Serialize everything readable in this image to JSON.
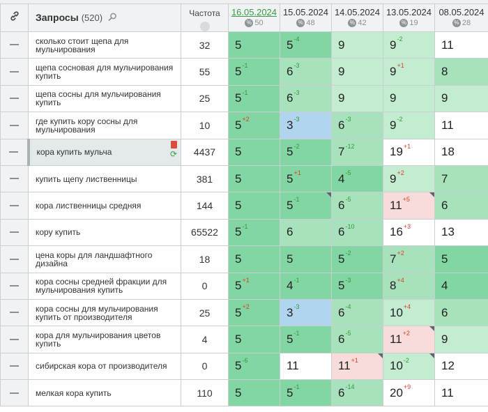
{
  "header": {
    "title": "Запросы",
    "count": "(520)",
    "freq": "Частота",
    "link_icon": "link-icon",
    "search_icon": "search-icon"
  },
  "dates": [
    {
      "label": "16.05.2024",
      "count": "50",
      "active": true
    },
    {
      "label": "15.05.2024",
      "count": "48",
      "active": false
    },
    {
      "label": "14.05.2024",
      "count": "42",
      "active": false
    },
    {
      "label": "13.05.2024",
      "count": "19",
      "active": false
    },
    {
      "label": "08.05.2024",
      "count": "28",
      "active": false
    }
  ],
  "rows": [
    {
      "query": "сколько стоит щепа для мульчирования",
      "freq": "32",
      "cells": [
        {
          "v": "5",
          "d": "",
          "c": "g1"
        },
        {
          "v": "5",
          "d": "-4",
          "c": "g1"
        },
        {
          "v": "9",
          "d": "",
          "c": "g3"
        },
        {
          "v": "9",
          "d": "-2",
          "c": "g3"
        },
        {
          "v": "11",
          "d": "",
          "c": "w"
        }
      ]
    },
    {
      "query": "щепа сосновая для мульчирования купить",
      "freq": "55",
      "cells": [
        {
          "v": "5",
          "d": "-1",
          "c": "g1"
        },
        {
          "v": "6",
          "d": "-3",
          "c": "g2"
        },
        {
          "v": "9",
          "d": "",
          "c": "g3"
        },
        {
          "v": "9",
          "d": "+1",
          "c": "g3"
        },
        {
          "v": "8",
          "d": "",
          "c": "g2"
        }
      ]
    },
    {
      "query": "щепа сосны для мульчирования купить",
      "freq": "25",
      "cells": [
        {
          "v": "5",
          "d": "-1",
          "c": "g1"
        },
        {
          "v": "6",
          "d": "-3",
          "c": "g2"
        },
        {
          "v": "9",
          "d": "",
          "c": "g3"
        },
        {
          "v": "9",
          "d": "",
          "c": "g3"
        },
        {
          "v": "9",
          "d": "",
          "c": "g3"
        }
      ]
    },
    {
      "query": "где купить кору сосны для мульчирования",
      "freq": "10",
      "cells": [
        {
          "v": "5",
          "d": "+2",
          "c": "g1"
        },
        {
          "v": "3",
          "d": "-3",
          "c": "b"
        },
        {
          "v": "6",
          "d": "-3",
          "c": "g2"
        },
        {
          "v": "9",
          "d": "-2",
          "c": "g3"
        },
        {
          "v": "11",
          "d": "",
          "c": "w"
        }
      ]
    },
    {
      "query": "кора купить мульча",
      "freq": "4437",
      "highlighted": true,
      "cells": [
        {
          "v": "5",
          "d": "",
          "c": "g1"
        },
        {
          "v": "5",
          "d": "-2",
          "c": "g1"
        },
        {
          "v": "7",
          "d": "-12",
          "c": "g2"
        },
        {
          "v": "19",
          "d": "+1",
          "c": "w"
        },
        {
          "v": "18",
          "d": "",
          "c": "w"
        }
      ]
    },
    {
      "query": "купить щепу лиственницы",
      "freq": "381",
      "cells": [
        {
          "v": "5",
          "d": "",
          "c": "g1"
        },
        {
          "v": "5",
          "d": "+1",
          "c": "g1"
        },
        {
          "v": "4",
          "d": "-5",
          "c": "g1"
        },
        {
          "v": "9",
          "d": "+2",
          "c": "g3"
        },
        {
          "v": "7",
          "d": "",
          "c": "g2"
        }
      ]
    },
    {
      "query": "кора лиственницы средняя",
      "freq": "144",
      "cells": [
        {
          "v": "5",
          "d": "",
          "c": "g1"
        },
        {
          "v": "5",
          "d": "-1",
          "c": "g1",
          "tri": true
        },
        {
          "v": "6",
          "d": "-5",
          "c": "g2"
        },
        {
          "v": "11",
          "d": "+5",
          "c": "p",
          "tri": true
        },
        {
          "v": "6",
          "d": "",
          "c": "g2"
        }
      ]
    },
    {
      "query": "кору купить",
      "freq": "65522",
      "cells": [
        {
          "v": "5",
          "d": "-1",
          "c": "g1"
        },
        {
          "v": "6",
          "d": "",
          "c": "g2"
        },
        {
          "v": "6",
          "d": "-10",
          "c": "g2"
        },
        {
          "v": "16",
          "d": "+3",
          "c": "w"
        },
        {
          "v": "13",
          "d": "",
          "c": "w"
        }
      ]
    },
    {
      "query": "цена коры для ландшафтного дизайна",
      "freq": "18",
      "cells": [
        {
          "v": "5",
          "d": "",
          "c": "g1"
        },
        {
          "v": "5",
          "d": "",
          "c": "g1"
        },
        {
          "v": "5",
          "d": "-2",
          "c": "g1"
        },
        {
          "v": "7",
          "d": "+2",
          "c": "g2"
        },
        {
          "v": "5",
          "d": "",
          "c": "g1"
        }
      ]
    },
    {
      "query": "кора сосны средней фракции для мульчирования купить",
      "freq": "0",
      "cells": [
        {
          "v": "5",
          "d": "+1",
          "c": "g1"
        },
        {
          "v": "4",
          "d": "-1",
          "c": "g1"
        },
        {
          "v": "5",
          "d": "-3",
          "c": "g1"
        },
        {
          "v": "8",
          "d": "+4",
          "c": "g2"
        },
        {
          "v": "4",
          "d": "",
          "c": "g1"
        }
      ]
    },
    {
      "query": "кора сосны для мульчирования купить от производителя",
      "freq": "25",
      "cells": [
        {
          "v": "5",
          "d": "+2",
          "c": "g1"
        },
        {
          "v": "3",
          "d": "-3",
          "c": "b"
        },
        {
          "v": "6",
          "d": "-4",
          "c": "g2"
        },
        {
          "v": "10",
          "d": "+4",
          "c": "g3"
        },
        {
          "v": "6",
          "d": "",
          "c": "g2"
        }
      ]
    },
    {
      "query": "кора для мульчирования цветов купить",
      "freq": "4",
      "cells": [
        {
          "v": "5",
          "d": "",
          "c": "g1"
        },
        {
          "v": "5",
          "d": "-1",
          "c": "g1"
        },
        {
          "v": "6",
          "d": "-5",
          "c": "g2"
        },
        {
          "v": "11",
          "d": "+2",
          "c": "p",
          "tri": true
        },
        {
          "v": "9",
          "d": "",
          "c": "g3"
        }
      ]
    },
    {
      "query": "сибирская кора от производителя",
      "freq": "0",
      "cells": [
        {
          "v": "5",
          "d": "-6",
          "c": "g1"
        },
        {
          "v": "11",
          "d": "",
          "c": "w"
        },
        {
          "v": "11",
          "d": "+1",
          "c": "p",
          "tri": true
        },
        {
          "v": "10",
          "d": "-2",
          "c": "g3",
          "tri": true
        },
        {
          "v": "12",
          "d": "",
          "c": "w"
        }
      ]
    },
    {
      "query": "мелкая кора купить",
      "freq": "110",
      "cells": [
        {
          "v": "5",
          "d": "",
          "c": "g1"
        },
        {
          "v": "5",
          "d": "-1",
          "c": "g1"
        },
        {
          "v": "6",
          "d": "-14",
          "c": "g2"
        },
        {
          "v": "20",
          "d": "+9",
          "c": "w"
        },
        {
          "v": "11",
          "d": "",
          "c": "w"
        }
      ]
    }
  ]
}
